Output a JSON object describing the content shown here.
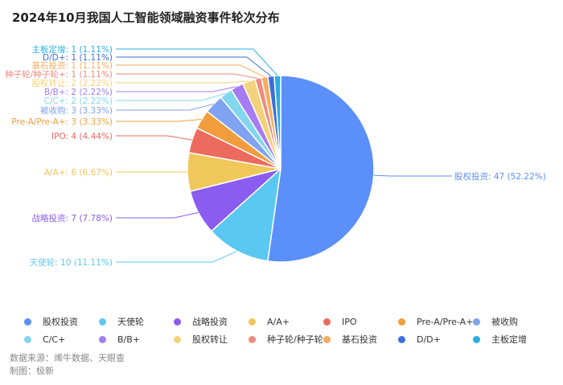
{
  "chart_data": {
    "type": "pie",
    "title": "2024年10月我国人工智能领域融资事件轮次分布",
    "total": 90,
    "slices": [
      {
        "name": "股权投资",
        "value": 47,
        "label": "股权投资: 47 (52.22%)",
        "color": "#5b8ff9"
      },
      {
        "name": "天使轮",
        "value": 10,
        "label": "天使轮: 10 (11.11%)",
        "color": "#5ac8f0"
      },
      {
        "name": "战略投资",
        "value": 7,
        "label": "战略投资: 7 (7.78%)",
        "color": "#8b5cf0"
      },
      {
        "name": "A/A+",
        "value": 6,
        "label": "A/A+: 6 (6.67%)",
        "color": "#f0c75a"
      },
      {
        "name": "IPO",
        "value": 4,
        "label": "IPO: 4 (4.44%)",
        "color": "#ec6a5e"
      },
      {
        "name": "Pre-A/Pre-A+",
        "value": 3,
        "label": "Pre-A/Pre-A+: 3 (3.33%)",
        "color": "#f19d3e"
      },
      {
        "name": "被收购",
        "value": 3,
        "label": "被收购: 3 (3.33%)",
        "color": "#7fa3f0"
      },
      {
        "name": "C/C+",
        "value": 2,
        "label": "C/C+: 2 (2.22%)",
        "color": "#82d6ee"
      },
      {
        "name": "B/B+",
        "value": 2,
        "label": "B/B+: 2 (2.22%)",
        "color": "#a57cf2"
      },
      {
        "name": "股权转让",
        "value": 2,
        "label": "股权转让: 2 (2.22%)",
        "color": "#f3d27c"
      },
      {
        "name": "种子轮/种子轮+",
        "value": 1,
        "label": "种子轮/种子轮+: 1 (1.11%)",
        "color": "#ee8a80"
      },
      {
        "name": "基石投资",
        "value": 1,
        "label": "基石投资: 1 (1.11%)",
        "color": "#f4ae5e"
      },
      {
        "name": "D/D+",
        "value": 1,
        "label": "D/D+: 1 (1.11%)",
        "color": "#3c6ee0"
      },
      {
        "name": "主板定增",
        "value": 1,
        "label": "主板定增: 1 (1.11%)",
        "color": "#2aaee0"
      }
    ],
    "legend_placement": "bottom"
  },
  "source": {
    "line1": "数据来源：烯牛数据、天眼查",
    "line2": "制图：极新"
  }
}
